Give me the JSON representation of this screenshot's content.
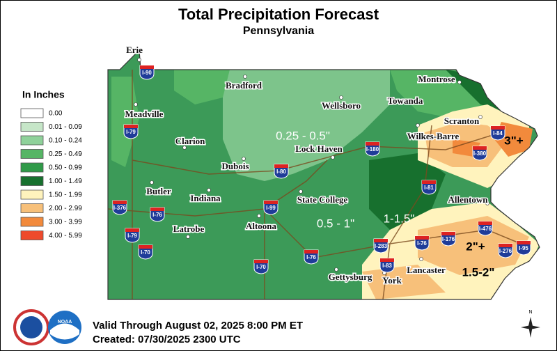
{
  "header": {
    "title": "Total Precipitation Forecast",
    "subtitle": "Pennsylvania"
  },
  "legend": {
    "title": "In Inches",
    "items": [
      {
        "label": "0.00",
        "color": "#ffffff"
      },
      {
        "label": "0.01 - 0.09",
        "color": "#c6e6c8"
      },
      {
        "label": "0.10 - 0.24",
        "color": "#8fd19a"
      },
      {
        "label": "0.25 - 0.49",
        "color": "#56b565"
      },
      {
        "label": "0.50 - 0.99",
        "color": "#2f9a48"
      },
      {
        "label": "1.00 - 1.49",
        "color": "#17702e"
      },
      {
        "label": "1.50 - 1.99",
        "color": "#fff3bd"
      },
      {
        "label": "2.00 - 2.99",
        "color": "#f7c07a"
      },
      {
        "label": "3.00 - 3.99",
        "color": "#f28a3c"
      },
      {
        "label": "4.00 - 5.99",
        "color": "#ee4a2c"
      }
    ]
  },
  "cities": [
    "Erie",
    "Meadville",
    "Bradford",
    "Wellsboro",
    "Montrose",
    "Towanda",
    "Scranton",
    "Wilkes-Barre",
    "Clarion",
    "Lock Haven",
    "Dubois",
    "Butler",
    "Indiana",
    "State College",
    "Allentown",
    "Latrobe",
    "Altoona",
    "Lancaster",
    "Gettysburg",
    "York"
  ],
  "interstates": [
    "I-90",
    "I-79",
    "I-180",
    "I-80",
    "I-81",
    "I-84",
    "I-380",
    "I-376",
    "I-76",
    "I-99",
    "I-79",
    "I-70",
    "I-70",
    "I-76",
    "I-283",
    "I-83",
    "I-76",
    "I-176",
    "I-476",
    "I-276",
    "I-95"
  ],
  "annotations": [
    "0.25 - 0.5\"",
    "0.5 - 1\"",
    "1-1.5\"",
    "3\"+",
    "2\"+",
    "1.5-2\""
  ],
  "footer": {
    "valid": "Valid Through August 02, 2025 8:00 PM ET",
    "created": "Created: 07/30/2025 2300 UTC",
    "noaa": "NOAA",
    "north": "N"
  }
}
